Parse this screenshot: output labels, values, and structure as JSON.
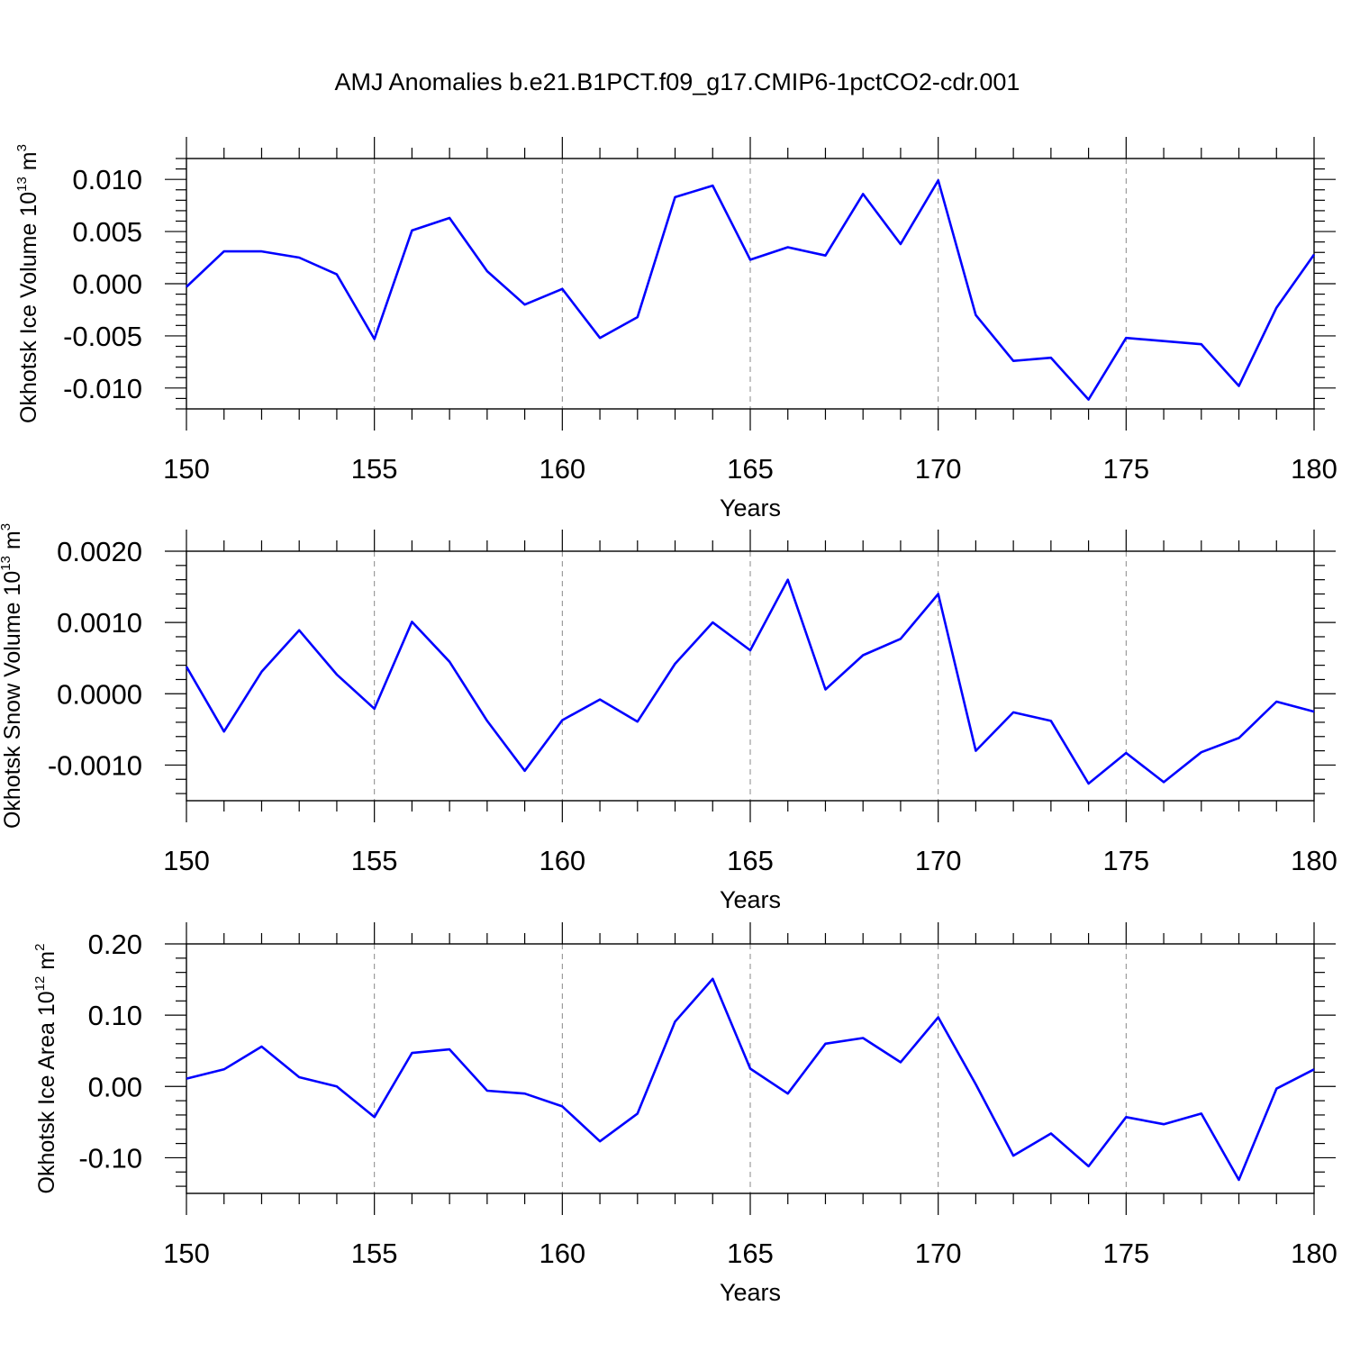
{
  "title": "AMJ Anomalies b.e21.B1PCT.f09_g17.CMIP6-1pctCO2-cdr.001",
  "colors": {
    "series": "#0000ff",
    "axis": "#000000",
    "grid": "#888888"
  },
  "chart_data": [
    {
      "type": "line",
      "id": "ice-volume",
      "xlabel": "Years",
      "ylabel": "Okhotsk Ice Volume",
      "ylabel_unit_base": "10",
      "ylabel_unit_exp": "13",
      "ylabel_unit_name": "m",
      "ylabel_unit_name_exp": "3",
      "xlim": [
        150,
        180
      ],
      "ylim": [
        -0.012,
        0.012
      ],
      "xticks": [
        150,
        155,
        160,
        165,
        170,
        175,
        180
      ],
      "xtick_labels": [
        "150",
        "155",
        "160",
        "165",
        "170",
        "175",
        "180"
      ],
      "yticks": [
        0.01,
        0.005,
        0.0,
        -0.005,
        -0.01
      ],
      "ytick_labels": [
        "0.010",
        "0.005",
        "0.000",
        "-0.005",
        "-0.010"
      ],
      "yminor_step": 0.001,
      "x": [
        150,
        151,
        152,
        153,
        154,
        155,
        156,
        157,
        158,
        159,
        160,
        161,
        162,
        163,
        164,
        165,
        166,
        167,
        168,
        169,
        170,
        171,
        172,
        173,
        174,
        175,
        176,
        177,
        178,
        179,
        180
      ],
      "values": [
        -0.0003,
        0.0031,
        0.0031,
        0.0025,
        0.0009,
        -0.0053,
        0.0051,
        0.0063,
        0.0012,
        -0.002,
        -0.0005,
        -0.0052,
        -0.0032,
        0.0083,
        0.0094,
        0.0023,
        0.0035,
        0.0027,
        0.0086,
        0.0038,
        0.0099,
        -0.003,
        -0.0074,
        -0.0071,
        -0.0111,
        -0.0052,
        -0.0055,
        -0.0058,
        -0.0098,
        -0.0023,
        0.0028
      ]
    },
    {
      "type": "line",
      "id": "snow-volume",
      "xlabel": "Years",
      "ylabel": "Okhotsk Snow Volume",
      "ylabel_unit_base": "10",
      "ylabel_unit_exp": "13",
      "ylabel_unit_name": "m",
      "ylabel_unit_name_exp": "3",
      "xlim": [
        150,
        180
      ],
      "ylim": [
        -0.0015,
        0.002
      ],
      "xticks": [
        150,
        155,
        160,
        165,
        170,
        175,
        180
      ],
      "xtick_labels": [
        "150",
        "155",
        "160",
        "165",
        "170",
        "175",
        "180"
      ],
      "yticks": [
        0.002,
        0.001,
        0.0,
        -0.001
      ],
      "ytick_labels": [
        "0.0020",
        "0.0010",
        "0.0000",
        "-0.0010"
      ],
      "yminor_step": 0.0002,
      "x": [
        150,
        151,
        152,
        153,
        154,
        155,
        156,
        157,
        158,
        159,
        160,
        161,
        162,
        163,
        164,
        165,
        166,
        167,
        168,
        169,
        170,
        171,
        172,
        173,
        174,
        175,
        176,
        177,
        178,
        179,
        180
      ],
      "values": [
        0.00038,
        -0.00053,
        0.00031,
        0.00089,
        0.00027,
        -0.00021,
        0.00101,
        0.00045,
        -0.00038,
        -0.00108,
        -0.00037,
        -8e-05,
        -0.00039,
        0.00042,
        0.001,
        0.00061,
        0.0016,
        6e-05,
        0.00054,
        0.00077,
        0.0014,
        -0.0008,
        -0.00026,
        -0.00038,
        -0.00126,
        -0.00083,
        -0.00124,
        -0.00082,
        -0.00062,
        -0.00011,
        -0.00025
      ]
    },
    {
      "type": "line",
      "id": "ice-area",
      "xlabel": "Years",
      "ylabel": "Okhotsk Ice Area",
      "ylabel_unit_base": "10",
      "ylabel_unit_exp": "12",
      "ylabel_unit_name": "m",
      "ylabel_unit_name_exp": "2",
      "xlim": [
        150,
        180
      ],
      "ylim": [
        -0.15,
        0.2
      ],
      "xticks": [
        150,
        155,
        160,
        165,
        170,
        175,
        180
      ],
      "xtick_labels": [
        "150",
        "155",
        "160",
        "165",
        "170",
        "175",
        "180"
      ],
      "yticks": [
        0.2,
        0.1,
        0.0,
        -0.1
      ],
      "ytick_labels": [
        "0.20",
        "0.10",
        "0.00",
        "-0.10"
      ],
      "yminor_step": 0.02,
      "x": [
        150,
        151,
        152,
        153,
        154,
        155,
        156,
        157,
        158,
        159,
        160,
        161,
        162,
        163,
        164,
        165,
        166,
        167,
        168,
        169,
        170,
        171,
        172,
        173,
        174,
        175,
        176,
        177,
        178,
        179,
        180
      ],
      "values": [
        0.011,
        0.024,
        0.056,
        0.013,
        0.0,
        -0.043,
        0.047,
        0.052,
        -0.006,
        -0.01,
        -0.028,
        -0.077,
        -0.038,
        0.091,
        0.151,
        0.025,
        -0.01,
        0.06,
        0.068,
        0.034,
        0.097,
        0.003,
        -0.097,
        -0.066,
        -0.112,
        -0.043,
        -0.053,
        -0.038,
        -0.131,
        -0.003,
        0.024
      ]
    }
  ]
}
